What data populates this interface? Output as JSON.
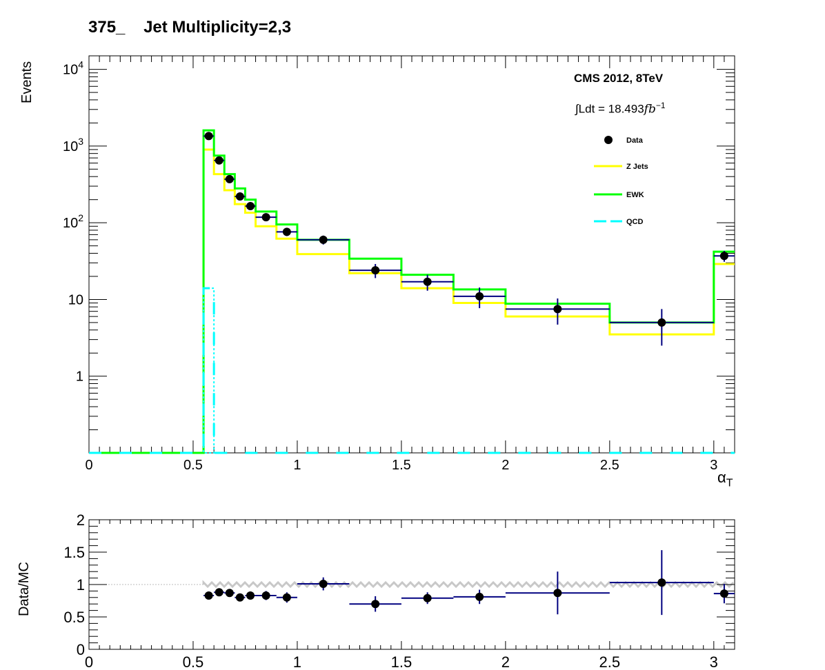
{
  "title": "375_    Jet Multiplicity=2,3",
  "annotations": {
    "experiment": "CMS 2012, 8TeV",
    "lumi_prefix": "∫Ldt = ",
    "lumi_value": "18.493",
    "lumi_unit": "fb",
    "lumi_exp": "−1"
  },
  "colors": {
    "data": "#000000",
    "data_errors": "#000080",
    "zjets": "#ffff00",
    "ewk": "#00ff00",
    "qcd": "#00ffff",
    "ratio_band": "#c8c8c8"
  },
  "chart_data": [
    {
      "type": "line",
      "title": "375_    Jet Multiplicity=2,3",
      "xlabel": "α_T",
      "ylabel": "Events",
      "yscale": "log",
      "xlim": [
        0,
        3.1
      ],
      "ylim": [
        0.1,
        15000
      ],
      "x_ticks": [
        "0",
        "0.5",
        "1",
        "1.5",
        "2",
        "2.5",
        "3"
      ],
      "y_ticks": [
        "1",
        "10",
        "10^2",
        "10^3",
        "10^4"
      ],
      "bin_edges": [
        0,
        0.55,
        0.6,
        0.65,
        0.7,
        0.75,
        0.8,
        0.9,
        1.0,
        1.25,
        1.5,
        1.75,
        2.0,
        2.5,
        3.0,
        3.1
      ],
      "series": [
        {
          "name": "Z Jets",
          "style": "step",
          "values": [
            0,
            900,
            430,
            265,
            175,
            135,
            90,
            62,
            39,
            22,
            14,
            9,
            6,
            3.5,
            29
          ]
        },
        {
          "name": "EWK",
          "style": "step",
          "values": [
            0,
            1600,
            750,
            430,
            280,
            200,
            140,
            95,
            60,
            34,
            21,
            13.5,
            8.8,
            5,
            42
          ]
        },
        {
          "name": "QCD",
          "style": "dashed-step",
          "values": [
            0,
            14,
            0,
            0,
            0,
            0,
            0,
            0,
            0,
            0,
            0,
            0,
            0,
            0,
            0
          ]
        },
        {
          "name": "Data",
          "style": "points",
          "x": [
            0.575,
            0.625,
            0.675,
            0.725,
            0.775,
            0.85,
            0.95,
            1.125,
            1.375,
            1.625,
            1.875,
            2.25,
            2.75,
            3.05
          ],
          "values": [
            1350,
            650,
            370,
            220,
            165,
            118,
            76,
            60,
            24,
            17,
            11,
            7.5,
            5,
            37
          ],
          "xerr": [
            0.025,
            0.025,
            0.025,
            0.025,
            0.025,
            0.05,
            0.05,
            0.125,
            0.125,
            0.125,
            0.125,
            0.25,
            0.25,
            0.05
          ],
          "yerr_low": [
            37,
            25,
            19,
            15,
            13,
            11,
            9,
            8,
            5,
            4,
            3.3,
            2.8,
            2.5,
            6
          ],
          "yerr_high": [
            37,
            25,
            19,
            15,
            13,
            11,
            9,
            8,
            5,
            4,
            3.3,
            2.8,
            2.5,
            6
          ]
        }
      ],
      "legend": [
        "Data",
        "Z Jets",
        "EWK",
        "QCD"
      ],
      "legend_position": "top-right"
    },
    {
      "type": "scatter",
      "ylabel": "Data/MC",
      "xlim": [
        0,
        3.1
      ],
      "ylim": [
        0,
        2
      ],
      "x_ticks": [
        "0",
        "0.5",
        "1",
        "1.5",
        "2",
        "2.5",
        "3"
      ],
      "y_ticks": [
        "0",
        "0.5",
        "1",
        "1.5",
        "2"
      ],
      "reference_line": 1,
      "x": [
        0.575,
        0.625,
        0.675,
        0.725,
        0.775,
        0.85,
        0.95,
        1.125,
        1.375,
        1.625,
        1.875,
        2.25,
        2.75,
        3.05
      ],
      "values": [
        0.83,
        0.88,
        0.87,
        0.8,
        0.83,
        0.83,
        0.8,
        1.01,
        0.7,
        0.79,
        0.81,
        0.87,
        1.03,
        0.86
      ],
      "xerr": [
        0.025,
        0.025,
        0.025,
        0.025,
        0.025,
        0.05,
        0.05,
        0.125,
        0.125,
        0.125,
        0.125,
        0.25,
        0.25,
        0.05
      ],
      "yerr": [
        0.03,
        0.04,
        0.04,
        0.05,
        0.06,
        0.07,
        0.08,
        0.1,
        0.12,
        0.09,
        0.11,
        0.33,
        0.5,
        0.15
      ]
    }
  ]
}
